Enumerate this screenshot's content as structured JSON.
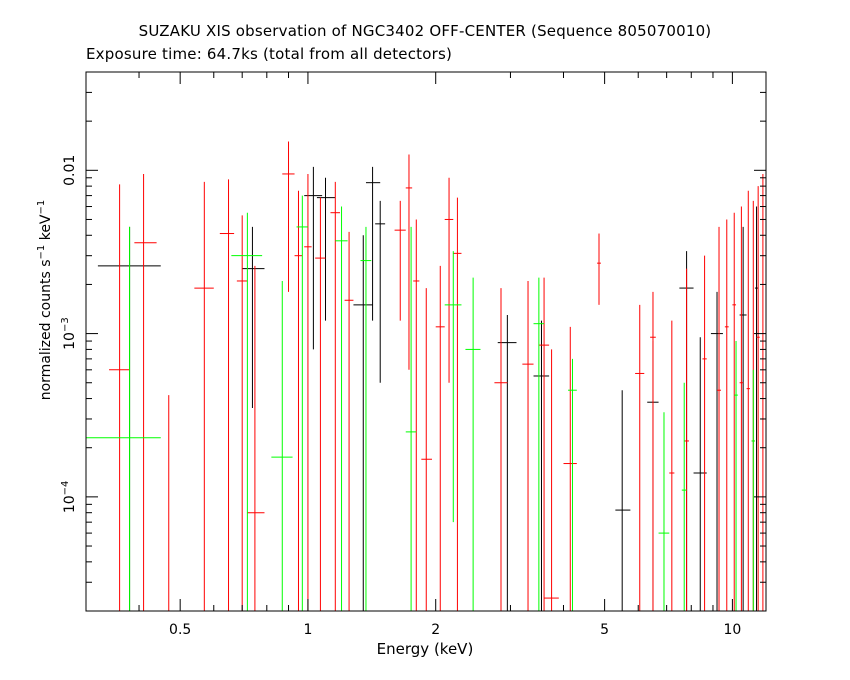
{
  "chart_data": {
    "type": "scatter",
    "title": "SUZAKU XIS observation of NGC3402 OFF-CENTER (Sequence 805070010)",
    "subtitle": "Exposure time: 64.7ks (total from all detectors)",
    "xlabel": "Energy (keV)",
    "ylabel": "normalized counts s^-1 keV^-1",
    "ylabel_parts": {
      "pre": "normalized counts s",
      "exp1": "−1",
      "mid": " keV",
      "exp2": "−1"
    },
    "xscale": "log",
    "yscale": "log",
    "xlim": [
      0.3,
      12
    ],
    "ylim": [
      2e-05,
      0.04
    ],
    "xticks": [
      {
        "value": 0.5,
        "label": "0.5"
      },
      {
        "value": 1,
        "label": "1"
      },
      {
        "value": 2,
        "label": "2"
      },
      {
        "value": 5,
        "label": "5"
      },
      {
        "value": 10,
        "label": "10"
      }
    ],
    "yticks": [
      {
        "value": 0.0001,
        "base": "10",
        "exp": "−4"
      },
      {
        "value": 0.001,
        "base": "10",
        "exp": "−3"
      },
      {
        "value": 0.01,
        "label": "0.01"
      }
    ],
    "grid": false,
    "colors": {
      "black": "#000000",
      "red": "#ff0000",
      "green": "#00ff00"
    },
    "series": [
      {
        "color": "#000000",
        "points": [
          {
            "x": 0.38,
            "xerr": [
              0.32,
              0.45
            ],
            "y": 0.0026,
            "yerr": [
              2e-05,
              0.0045
            ]
          },
          {
            "x": 0.74,
            "xerr": [
              0.7,
              0.79
            ],
            "y": 0.0025,
            "yerr": [
              0.00035,
              0.0045
            ]
          },
          {
            "x": 1.03,
            "xerr": [
              0.98,
              1.08
            ],
            "y": 0.007,
            "yerr": [
              0.0008,
              0.0105
            ]
          },
          {
            "x": 1.1,
            "xerr": [
              1.05,
              1.16
            ],
            "y": 0.0068,
            "yerr": [
              0.0012,
              0.009
            ]
          },
          {
            "x": 1.35,
            "xerr": [
              1.28,
              1.42
            ],
            "y": 0.0015,
            "yerr": [
              2e-05,
              0.004
            ]
          },
          {
            "x": 1.42,
            "xerr": [
              1.37,
              1.48
            ],
            "y": 0.0084,
            "yerr": [
              0.0012,
              0.0105
            ]
          },
          {
            "x": 1.48,
            "xerr": [
              1.44,
              1.52
            ],
            "y": 0.0047,
            "yerr": [
              0.0005,
              0.0065
            ]
          },
          {
            "x": 2.95,
            "xerr": [
              2.8,
              3.1
            ],
            "y": 0.00088,
            "yerr": [
              2e-05,
              0.0013
            ]
          },
          {
            "x": 3.55,
            "xerr": [
              3.4,
              3.7
            ],
            "y": 0.00055,
            "yerr": [
              2e-05,
              0.0012
            ]
          },
          {
            "x": 5.5,
            "xerr": [
              5.3,
              5.75
            ],
            "y": 8.3e-05,
            "yerr": [
              2e-05,
              0.00045
            ]
          },
          {
            "x": 6.5,
            "xerr": [
              6.3,
              6.7
            ],
            "y": 0.00038,
            "yerr": [
              2e-05,
              0.0009
            ]
          },
          {
            "x": 7.8,
            "xerr": [
              7.5,
              8.1
            ],
            "y": 0.0019,
            "yerr": [
              2e-05,
              0.0032
            ]
          },
          {
            "x": 8.4,
            "xerr": [
              8.1,
              8.7
            ],
            "y": 0.00014,
            "yerr": [
              2e-05,
              0.00095
            ]
          },
          {
            "x": 9.2,
            "xerr": [
              8.9,
              9.5
            ],
            "y": 0.001,
            "yerr": [
              2e-05,
              0.0018
            ]
          },
          {
            "x": 10.6,
            "xerr": [
              10.4,
              10.8
            ],
            "y": 0.0013,
            "yerr": [
              2e-05,
              0.0045
            ]
          },
          {
            "x": 11.4,
            "xerr": [
              11.3,
              11.5
            ],
            "y": 0.0019,
            "yerr": [
              2e-05,
              0.006
            ]
          }
        ]
      },
      {
        "color": "#ff0000",
        "points": [
          {
            "x": 0.36,
            "xerr": [
              0.34,
              0.38
            ],
            "y": 0.0006,
            "yerr": [
              2e-05,
              0.0082
            ]
          },
          {
            "x": 0.41,
            "xerr": [
              0.39,
              0.44
            ],
            "y": 0.0036,
            "yerr": [
              2e-05,
              0.0095
            ]
          },
          {
            "x": 0.47,
            "xerr": [
              0.46,
              0.48
            ],
            "y": 2e-05,
            "yerr": [
              2e-05,
              0.00042
            ]
          },
          {
            "x": 0.57,
            "xerr": [
              0.54,
              0.6
            ],
            "y": 0.0019,
            "yerr": [
              2e-05,
              0.0085
            ]
          },
          {
            "x": 0.65,
            "xerr": [
              0.62,
              0.67
            ],
            "y": 0.0041,
            "yerr": [
              2e-05,
              0.0088
            ]
          },
          {
            "x": 0.7,
            "xerr": [
              0.68,
              0.72
            ],
            "y": 0.0021,
            "yerr": [
              2e-05,
              0.0053
            ]
          },
          {
            "x": 0.75,
            "xerr": [
              0.72,
              0.79
            ],
            "y": 8e-05,
            "yerr": [
              2e-05,
              0.0026
            ]
          },
          {
            "x": 0.9,
            "xerr": [
              0.87,
              0.93
            ],
            "y": 0.0095,
            "yerr": [
              0.0018,
              0.015
            ]
          },
          {
            "x": 0.95,
            "xerr": [
              0.93,
              0.97
            ],
            "y": 0.003,
            "yerr": [
              2e-05,
              0.0075
            ]
          },
          {
            "x": 1.0,
            "xerr": [
              0.98,
              1.02
            ],
            "y": 0.0034,
            "yerr": [
              2e-05,
              0.0095
            ]
          },
          {
            "x": 1.07,
            "xerr": [
              1.04,
              1.1
            ],
            "y": 0.0029,
            "yerr": [
              2e-05,
              0.0068
            ]
          },
          {
            "x": 1.16,
            "xerr": [
              1.13,
              1.19
            ],
            "y": 0.0055,
            "yerr": [
              2e-05,
              0.0085
            ]
          },
          {
            "x": 1.25,
            "xerr": [
              1.22,
              1.28
            ],
            "y": 0.0016,
            "yerr": [
              2e-05,
              0.0042
            ]
          },
          {
            "x": 1.65,
            "xerr": [
              1.6,
              1.7
            ],
            "y": 0.0043,
            "yerr": [
              0.0012,
              0.0065
            ]
          },
          {
            "x": 1.73,
            "xerr": [
              1.7,
              1.76
            ],
            "y": 0.0078,
            "yerr": [
              0.0006,
              0.0125
            ]
          },
          {
            "x": 1.8,
            "xerr": [
              1.77,
              1.83
            ],
            "y": 0.0021,
            "yerr": [
              2e-05,
              0.005
            ]
          },
          {
            "x": 1.9,
            "xerr": [
              1.85,
              1.96
            ],
            "y": 0.00017,
            "yerr": [
              2e-05,
              0.0019
            ]
          },
          {
            "x": 2.05,
            "xerr": [
              2.0,
              2.1
            ],
            "y": 0.0011,
            "yerr": [
              2e-05,
              0.0026
            ]
          },
          {
            "x": 2.15,
            "xerr": [
              2.1,
              2.2
            ],
            "y": 0.005,
            "yerr": [
              0.0005,
              0.009
            ]
          },
          {
            "x": 2.25,
            "xerr": [
              2.2,
              2.3
            ],
            "y": 0.0031,
            "yerr": [
              2e-05,
              0.0068
            ]
          },
          {
            "x": 2.85,
            "xerr": [
              2.75,
              2.95
            ],
            "y": 0.0005,
            "yerr": [
              2e-05,
              0.0019
            ]
          },
          {
            "x": 3.3,
            "xerr": [
              3.2,
              3.4
            ],
            "y": 0.00065,
            "yerr": [
              2e-05,
              0.0021
            ]
          },
          {
            "x": 3.6,
            "xerr": [
              3.5,
              3.7
            ],
            "y": 0.00085,
            "yerr": [
              2e-05,
              0.0022
            ]
          },
          {
            "x": 3.75,
            "xerr": [
              3.6,
              3.9
            ],
            "y": 2.4e-05,
            "yerr": [
              2e-05,
              0.0008
            ]
          },
          {
            "x": 4.15,
            "xerr": [
              4.0,
              4.3
            ],
            "y": 0.00016,
            "yerr": [
              2e-05,
              0.0011
            ]
          },
          {
            "x": 4.85,
            "xerr": [
              4.8,
              4.9
            ],
            "y": 0.0027,
            "yerr": [
              0.0015,
              0.0041
            ]
          },
          {
            "x": 6.05,
            "xerr": [
              5.9,
              6.2
            ],
            "y": 0.00057,
            "yerr": [
              2e-05,
              0.0015
            ]
          },
          {
            "x": 6.5,
            "xerr": [
              6.4,
              6.6
            ],
            "y": 0.00095,
            "yerr": [
              2e-05,
              0.0018
            ]
          },
          {
            "x": 7.2,
            "xerr": [
              7.1,
              7.3
            ],
            "y": 0.00014,
            "yerr": [
              2e-05,
              0.0012
            ]
          },
          {
            "x": 7.8,
            "xerr": [
              7.7,
              7.9
            ],
            "y": 0.00022,
            "yerr": [
              2e-05,
              0.0025
            ]
          },
          {
            "x": 8.6,
            "xerr": [
              8.5,
              8.7
            ],
            "y": 0.0007,
            "yerr": [
              2e-05,
              0.003
            ]
          },
          {
            "x": 9.3,
            "xerr": [
              9.2,
              9.4
            ],
            "y": 0.00045,
            "yerr": [
              2e-05,
              0.0045
            ]
          },
          {
            "x": 9.7,
            "xerr": [
              9.6,
              9.8
            ],
            "y": 0.0011,
            "yerr": [
              2e-05,
              0.005
            ]
          },
          {
            "x": 10.1,
            "xerr": [
              10.0,
              10.2
            ],
            "y": 0.0015,
            "yerr": [
              2e-05,
              0.0055
            ]
          },
          {
            "x": 10.5,
            "xerr": [
              10.4,
              10.6
            ],
            "y": 0.0005,
            "yerr": [
              2e-05,
              0.006
            ]
          },
          {
            "x": 10.9,
            "xerr": [
              10.8,
              11.0
            ],
            "y": 0.00046,
            "yerr": [
              2e-05,
              0.0075
            ]
          },
          {
            "x": 11.2,
            "xerr": [
              11.1,
              11.3
            ],
            "y": 0.00022,
            "yerr": [
              2e-05,
              0.0065
            ]
          },
          {
            "x": 11.5,
            "xerr": [
              11.4,
              11.6
            ],
            "y": 0.00095,
            "yerr": [
              2e-05,
              0.008
            ]
          },
          {
            "x": 11.8,
            "xerr": [
              11.7,
              11.9
            ],
            "y": 0.0003,
            "yerr": [
              2e-05,
              0.0095
            ]
          }
        ]
      },
      {
        "color": "#00ff00",
        "points": [
          {
            "x": 0.38,
            "xerr": [
              0.3,
              0.45
            ],
            "y": 0.00023,
            "yerr": [
              2e-05,
              0.0045
            ]
          },
          {
            "x": 0.72,
            "xerr": [
              0.66,
              0.78
            ],
            "y": 0.003,
            "yerr": [
              2e-05,
              0.0055
            ]
          },
          {
            "x": 0.87,
            "xerr": [
              0.82,
              0.92
            ],
            "y": 0.000175,
            "yerr": [
              2e-05,
              0.0021
            ]
          },
          {
            "x": 0.97,
            "xerr": [
              0.94,
              1.0
            ],
            "y": 0.0045,
            "yerr": [
              2e-05,
              0.007
            ]
          },
          {
            "x": 1.2,
            "xerr": [
              1.16,
              1.24
            ],
            "y": 0.0037,
            "yerr": [
              2e-05,
              0.006
            ]
          },
          {
            "x": 1.37,
            "xerr": [
              1.33,
              1.41
            ],
            "y": 0.0028,
            "yerr": [
              2e-05,
              0.0045
            ]
          },
          {
            "x": 1.75,
            "xerr": [
              1.7,
              1.8
            ],
            "y": 0.00025,
            "yerr": [
              2e-05,
              0.0045
            ]
          },
          {
            "x": 2.2,
            "xerr": [
              2.1,
              2.3
            ],
            "y": 0.0015,
            "yerr": [
              7e-05,
              0.0032
            ]
          },
          {
            "x": 2.45,
            "xerr": [
              2.35,
              2.55
            ],
            "y": 0.0008,
            "yerr": [
              2e-05,
              0.0022
            ]
          },
          {
            "x": 3.5,
            "xerr": [
              3.4,
              3.6
            ],
            "y": 0.00115,
            "yerr": [
              2e-05,
              0.0022
            ]
          },
          {
            "x": 4.2,
            "xerr": [
              4.1,
              4.3
            ],
            "y": 0.00045,
            "yerr": [
              2e-05,
              0.0007
            ]
          },
          {
            "x": 6.9,
            "xerr": [
              6.7,
              7.1
            ],
            "y": 6e-05,
            "yerr": [
              2e-05,
              0.00033
            ]
          },
          {
            "x": 7.7,
            "xerr": [
              7.6,
              7.8
            ],
            "y": 0.00011,
            "yerr": [
              2e-05,
              0.0005
            ]
          },
          {
            "x": 10.2,
            "xerr": [
              10.1,
              10.3
            ],
            "y": 0.00042,
            "yerr": [
              2e-05,
              0.0009
            ]
          },
          {
            "x": 11.2,
            "xerr": [
              11.1,
              11.3
            ],
            "y": 0.00022,
            "yerr": [
              2e-05,
              0.0006
            ]
          }
        ]
      }
    ]
  }
}
